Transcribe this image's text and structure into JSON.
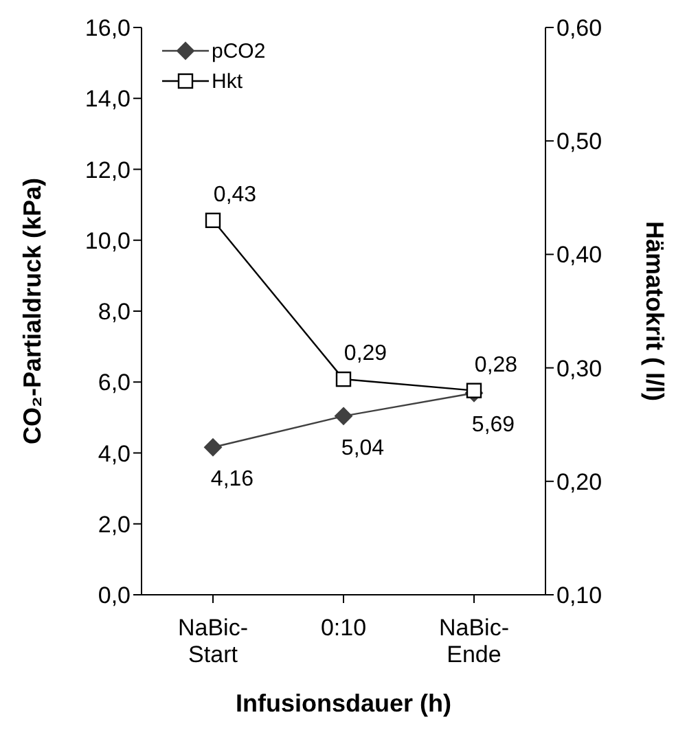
{
  "chart_data": {
    "type": "line",
    "xlabel": "Infusionsdauer (h)",
    "ylabel": "CO₂-Partialdruck (kPa)",
    "y2label": "Hämatokrit ( l/l)",
    "categories": [
      "NaBic-Start",
      "0:10",
      "NaBic-Ende"
    ],
    "series": [
      {
        "name": "pCO2",
        "color": "#404040",
        "marker": "diamond",
        "values": [
          4.16,
          5.04,
          5.69
        ],
        "value_labels": [
          "4,16",
          "5,04",
          "5,69"
        ]
      },
      {
        "name": "Hkt",
        "color": "#000000",
        "marker": "square",
        "axis": "y2",
        "values": [
          0.43,
          0.29,
          0.28
        ],
        "value_labels": [
          "0,43",
          "0,29",
          "0,28"
        ]
      }
    ],
    "ylim": [
      0,
      16
    ],
    "yticks": [
      {
        "value": 0,
        "label": "0,0"
      },
      {
        "value": 2,
        "label": "2,0"
      },
      {
        "value": 4,
        "label": "4,0"
      },
      {
        "value": 6,
        "label": "6,0"
      },
      {
        "value": 8,
        "label": "8,0"
      },
      {
        "value": 10,
        "label": "10,0"
      },
      {
        "value": 12,
        "label": "12,0"
      },
      {
        "value": 14,
        "label": "14,0"
      },
      {
        "value": 16,
        "label": "16,0"
      }
    ],
    "y2lim": [
      0.1,
      0.6
    ],
    "y2ticks": [
      {
        "value": 0.1,
        "label": "0,10"
      },
      {
        "value": 0.2,
        "label": "0,20"
      },
      {
        "value": 0.3,
        "label": "0,30"
      },
      {
        "value": 0.4,
        "label": "0,40"
      },
      {
        "value": 0.5,
        "label": "0,50"
      },
      {
        "value": 0.6,
        "label": "0,60"
      }
    ],
    "grid": false,
    "legend": "top left"
  }
}
